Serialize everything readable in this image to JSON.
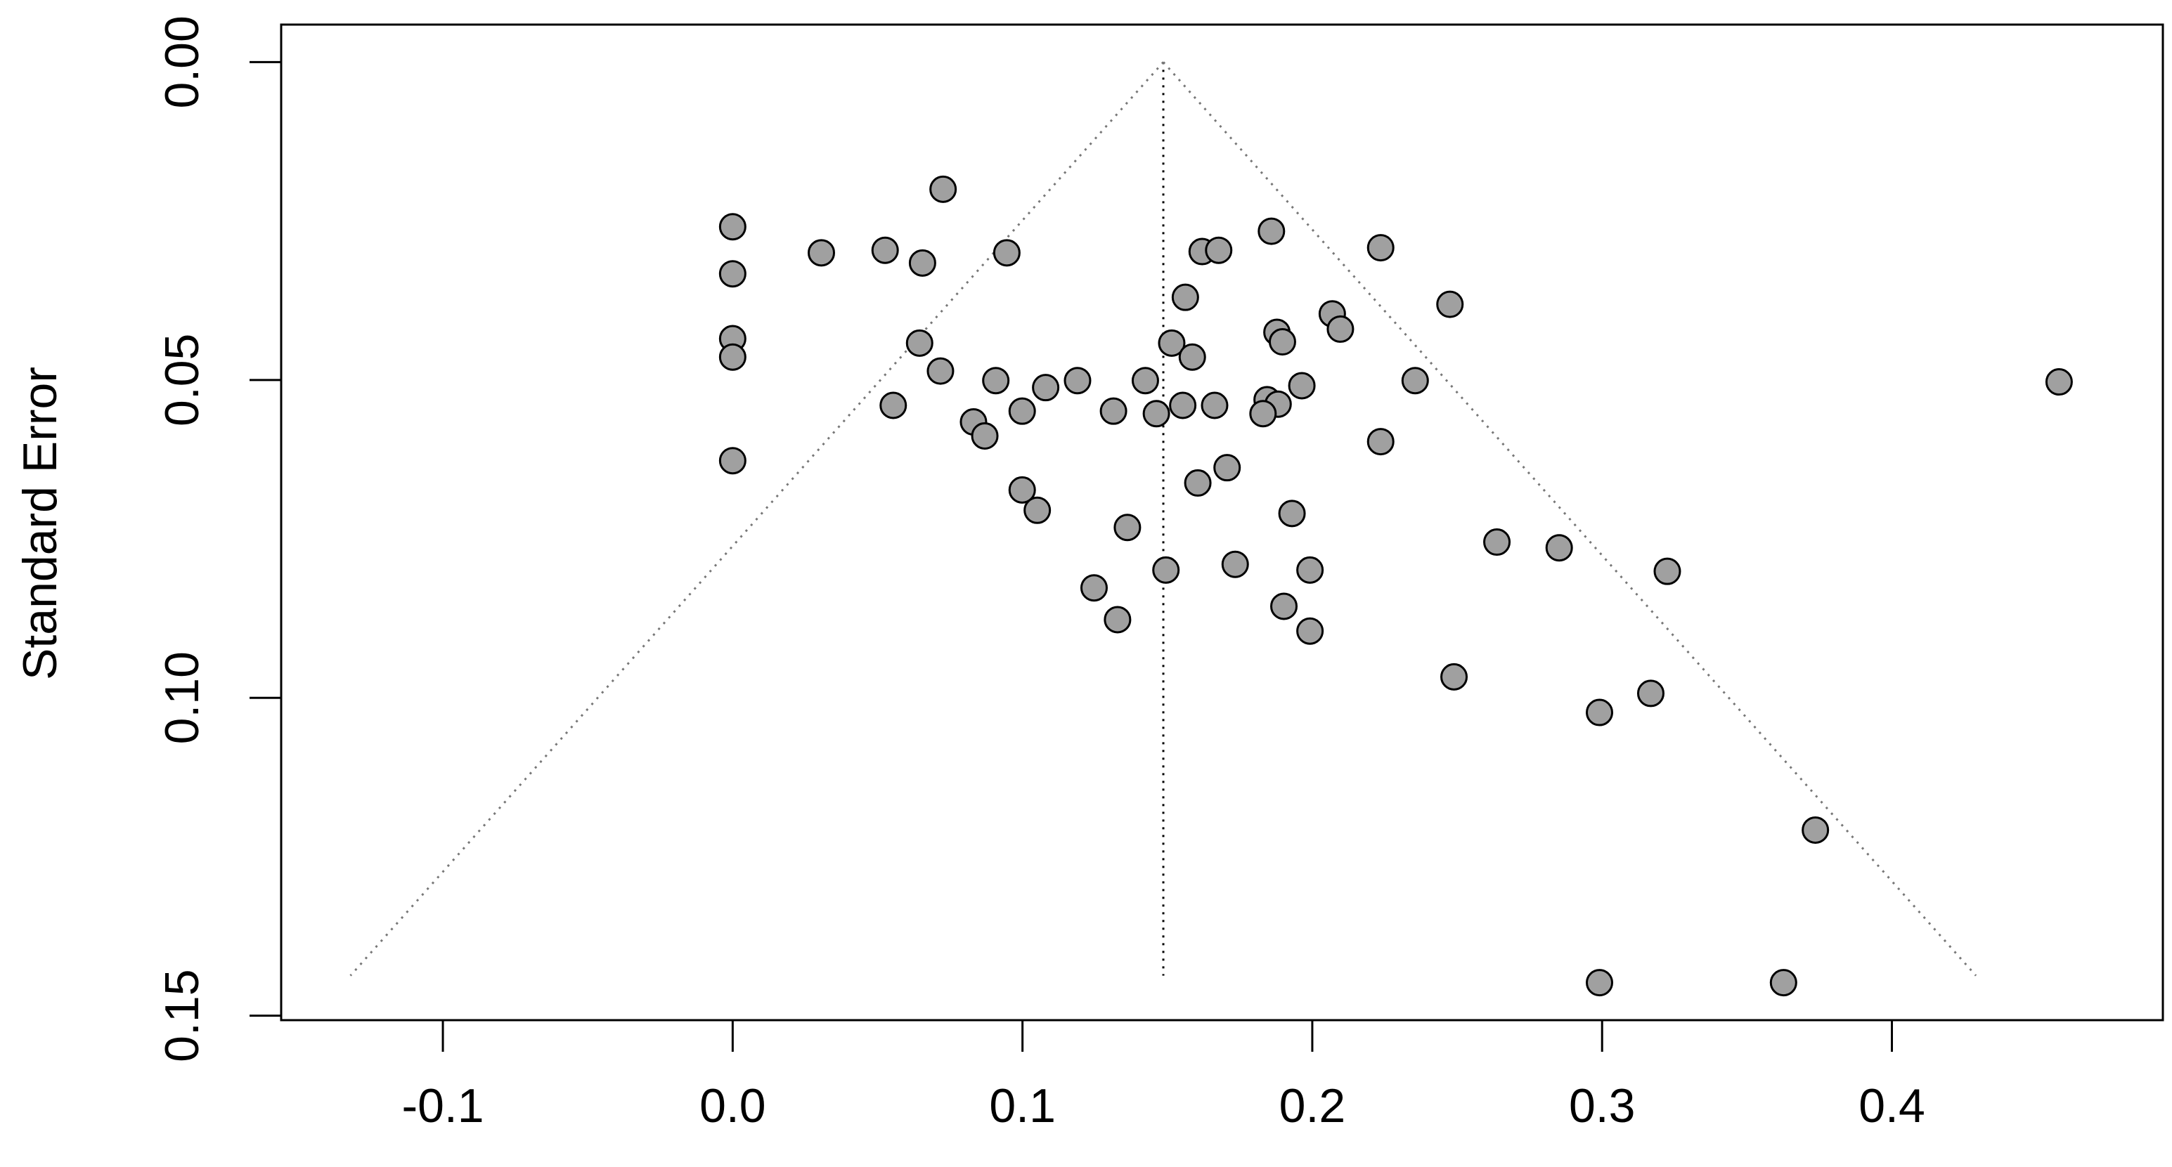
{
  "chart_data": {
    "type": "scatter",
    "y_label": "Standard Error",
    "x": [
      0,
      0,
      0,
      0,
      0,
      0.0306,
      0.0526,
      0.0655,
      0.0726,
      0.0946,
      0.0645,
      0.0717,
      0.0554,
      0.0831,
      0.087,
      0.0908,
      0.0999,
      0.108,
      0.119,
      0.1314,
      0.1424,
      0.1462,
      0.1515,
      0.1553,
      0.1562,
      0.1586,
      0.162,
      0.1677,
      0.1663,
      0.1859,
      0.1878,
      0.1897,
      0.1844,
      0.1882,
      0.183,
      0.1964,
      0.2069,
      0.2097,
      0.2236,
      0.2475,
      0.2355,
      0.2236,
      0.1605,
      0.1706,
      0.0999,
      0.1051,
      0.193,
      0.1362,
      0.2637,
      0.2852,
      0.1734,
      0.1495,
      0.1992,
      0.3225,
      0.1247,
      0.1328,
      0.1902,
      0.1992,
      0.2489,
      0.2991,
      0.3168,
      0.3736,
      0.2991,
      0.3626,
      0.4577
    ],
    "values": [
      0.0259,
      0.0333,
      0.0435,
      0.0464,
      0.0627,
      0.03,
      0.0296,
      0.0316,
      0.02,
      0.03,
      0.0442,
      0.0486,
      0.054,
      0.0566,
      0.0588,
      0.0501,
      0.0549,
      0.0512,
      0.0501,
      0.0549,
      0.0501,
      0.0553,
      0.0442,
      0.054,
      0.037,
      0.0464,
      0.0298,
      0.0296,
      0.054,
      0.0266,
      0.0425,
      0.044,
      0.0531,
      0.0538,
      0.0553,
      0.0509,
      0.0396,
      0.042,
      0.0292,
      0.0381,
      0.0501,
      0.0597,
      0.0662,
      0.0638,
      0.0673,
      0.0705,
      0.071,
      0.0732,
      0.0755,
      0.0764,
      0.079,
      0.0799,
      0.0799,
      0.0801,
      0.0827,
      0.0877,
      0.0856,
      0.0895,
      0.0967,
      0.1023,
      0.0993,
      0.1208,
      0.1448,
      0.1448,
      0.0503
    ],
    "color": "#a0a0a0",
    "funnel": {
      "center": 0.1486,
      "bottom_se": 0.1437,
      "bottom_left": -0.1319,
      "bottom_right": 0.429
    },
    "xlim": [
      -0.1558,
      0.4935
    ],
    "ylim": [
      -0.0059,
      0.1507
    ],
    "y_reversed": true,
    "xticks": [
      -0.1,
      {
        "value": 0,
        "label": "0.0"
      },
      0.1,
      0.2,
      0.3,
      0.4
    ],
    "yticks": [
      {
        "value": 0,
        "label": "0.00"
      },
      {
        "value": 0.05,
        "label": "0.05"
      },
      {
        "value": 0.1,
        "label": "0.10"
      },
      {
        "value": 0.15,
        "label": "0.15"
      }
    ]
  }
}
